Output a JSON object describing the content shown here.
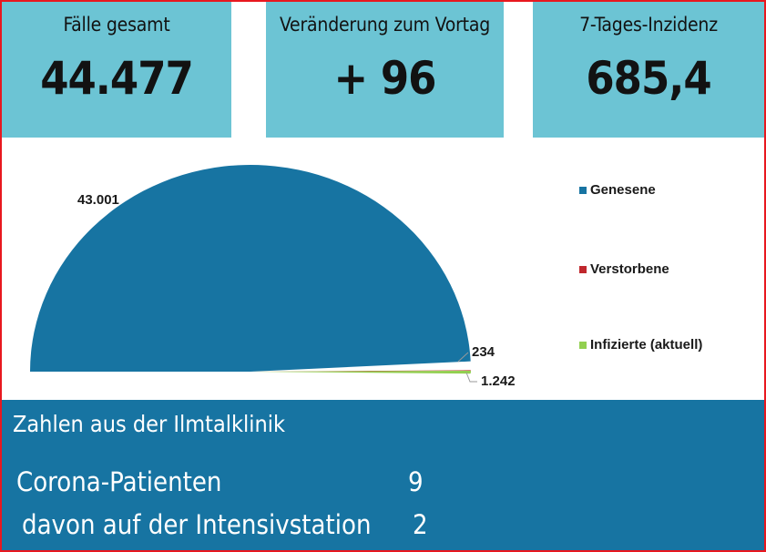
{
  "tiles": [
    {
      "label": "Fälle gesamt",
      "value": "44.477"
    },
    {
      "label": "Veränderung zum Vortag",
      "value": "+ 96"
    },
    {
      "label": "7-Tages-Inzidenz",
      "value": "685,4"
    }
  ],
  "chart_data": {
    "type": "pie",
    "series": [
      {
        "name": "Genesene",
        "value": 43001,
        "label": "43.001",
        "color": "#1774a2"
      },
      {
        "name": "Verstorbene",
        "value": 234,
        "label": "234",
        "color": "#c0272d"
      },
      {
        "name": "Infizierte (aktuell)",
        "value": 1242,
        "label": "1.242",
        "color": "#92d050"
      }
    ],
    "legend": "right"
  },
  "clinic": {
    "title": "Zahlen aus der Ilmtalklinik",
    "rows": [
      {
        "label": "Corona-Patienten",
        "value": "9"
      },
      {
        "label": "davon auf der Intensivstation",
        "value": "2"
      }
    ]
  }
}
